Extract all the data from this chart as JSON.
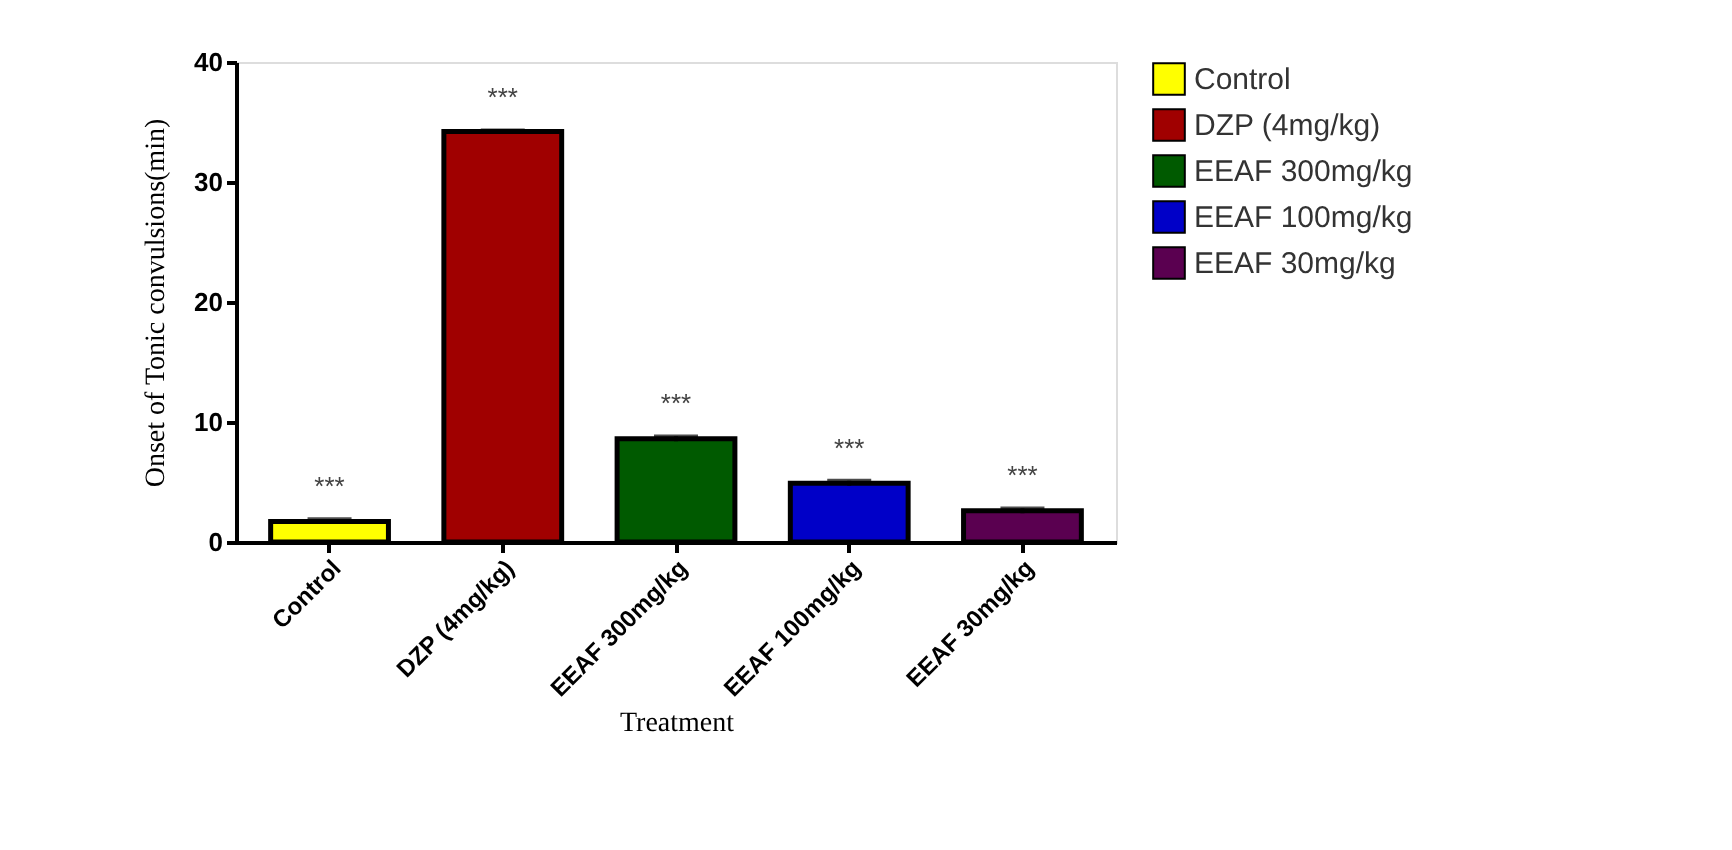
{
  "chart_data": {
    "type": "bar",
    "xlabel": "Treatment",
    "ylabel": "Onset of Tonic convulsions(min)",
    "categories": [
      "Control",
      "DZP (4mg/kg)",
      "EEAF 300mg/kg",
      "EEAF 100mg/kg",
      "EEAF 30mg/kg"
    ],
    "series": [
      {
        "name": "Control",
        "color": "#ffff00",
        "values": [
          1.7,
          null,
          null,
          null,
          null
        ],
        "errors": [
          0.2,
          null,
          null,
          null,
          null
        ]
      },
      {
        "name": "DZP (4mg/kg)",
        "color": "#a00000",
        "values": [
          null,
          34.2,
          null,
          null,
          null
        ],
        "errors": [
          null,
          0.1,
          null,
          null,
          null
        ]
      },
      {
        "name": "EEAF 300mg/kg",
        "color": "#005a00",
        "values": [
          null,
          null,
          8.6,
          null,
          null
        ],
        "errors": [
          null,
          null,
          0.2,
          null,
          null
        ]
      },
      {
        "name": "EEAF 100mg/kg",
        "color": "#0000c8",
        "values": [
          null,
          null,
          null,
          4.9,
          null
        ],
        "errors": [
          null,
          null,
          null,
          0.2,
          null
        ]
      },
      {
        "name": "EEAF 30mg/kg",
        "color": "#5a0050",
        "values": [
          null,
          null,
          null,
          null,
          2.6
        ],
        "errors": [
          null,
          null,
          null,
          null,
          0.2
        ]
      }
    ],
    "ylim": [
      0,
      40
    ],
    "yticks": [
      0,
      10,
      20,
      30,
      40
    ],
    "grid": false,
    "legend": "top right",
    "annotations": [
      {
        "text": "***",
        "x": "Control",
        "y": 1.9
      },
      {
        "text": "***",
        "x": "DZP (4mg/kg)",
        "y": 34.3
      },
      {
        "text": "***",
        "x": "EEAF 300mg/kg",
        "y": 8.8
      },
      {
        "text": "***",
        "x": "EEAF 100mg/kg",
        "y": 5.1
      },
      {
        "text": "***",
        "x": "EEAF 30mg/kg",
        "y": 2.8
      }
    ]
  }
}
